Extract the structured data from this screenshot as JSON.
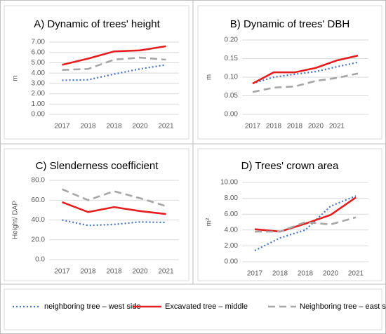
{
  "chart_data": [
    {
      "type": "line",
      "title": "A) Dynamic of trees' height",
      "ylabel": "m",
      "categories": [
        "2017",
        "2018",
        "2018",
        "2020",
        "2021"
      ],
      "ylim": [
        0,
        7
      ],
      "yticks": [
        {
          "value": 0,
          "label": "0.00"
        },
        {
          "value": 1,
          "label": "1.00"
        },
        {
          "value": 2,
          "label": "2.00"
        },
        {
          "value": 3,
          "label": "3.00"
        },
        {
          "value": 4,
          "label": "4.00"
        },
        {
          "value": 5,
          "label": "5.00"
        },
        {
          "value": 6,
          "label": "6.00"
        },
        {
          "value": 7,
          "label": "7.00"
        }
      ],
      "grid": true,
      "series": [
        {
          "name": "neighboring tree – west side",
          "color": "#4472c4",
          "values": [
            3.3,
            3.35,
            3.9,
            4.4,
            4.8
          ]
        },
        {
          "name": "Excavated tree – middle",
          "color": "#e41e1e",
          "values": [
            4.8,
            5.4,
            6.1,
            6.2,
            6.6
          ]
        },
        {
          "name": "Neighboring tree – east side",
          "color": "#a6a6a6",
          "values": [
            4.3,
            4.4,
            5.3,
            5.5,
            5.3
          ]
        }
      ]
    },
    {
      "type": "line",
      "title": "B) Dynamic of trees' DBH",
      "ylabel": "m",
      "categories": [
        "2017",
        "2018",
        "2018",
        "2020",
        "2021",
        null
      ],
      "ylim": [
        0,
        0.2
      ],
      "yticks": [
        {
          "value": 0,
          "label": "0.00"
        },
        {
          "value": 0.05,
          "label": "0.05"
        },
        {
          "value": 0.1,
          "label": "0.10"
        },
        {
          "value": 0.15,
          "label": "0.15"
        },
        {
          "value": 0.2,
          "label": "0.20"
        }
      ],
      "grid": true,
      "series": [
        {
          "color": "#4472c4",
          "values": [
            0.083,
            0.1,
            0.108,
            0.115,
            0.128,
            0.14
          ]
        },
        {
          "color": "#e41e1e",
          "values": [
            0.083,
            0.113,
            0.113,
            0.125,
            0.145,
            0.158
          ]
        },
        {
          "color": "#a6a6a6",
          "values": [
            0.06,
            0.072,
            0.075,
            0.09,
            0.098,
            0.11
          ]
        }
      ]
    },
    {
      "type": "line",
      "title": "C) Slenderness coefficient",
      "ylabel": "Height/ DAP",
      "categories": [
        "2017",
        "2018",
        "2018",
        "2020",
        "2021"
      ],
      "ylim": [
        0,
        80
      ],
      "yticks": [
        {
          "value": 0,
          "label": "0.0"
        },
        {
          "value": 20,
          "label": "20.0"
        },
        {
          "value": 40,
          "label": "40.0"
        },
        {
          "value": 60,
          "label": "60.0"
        },
        {
          "value": 80,
          "label": "80.0"
        }
      ],
      "grid": true,
      "series": [
        {
          "color": "#4472c4",
          "values": [
            40,
            34.5,
            35.5,
            38,
            37.5
          ]
        },
        {
          "color": "#e41e1e",
          "values": [
            58,
            48,
            53,
            49,
            46
          ]
        },
        {
          "color": "#a6a6a6",
          "values": [
            71,
            60,
            69,
            62,
            54
          ]
        }
      ]
    },
    {
      "type": "line",
      "title": "D) Trees' crown area",
      "ylabel": "m²",
      "categories": [
        "2017",
        "2018",
        "2018",
        "2020",
        "2021"
      ],
      "ylim": [
        0,
        10
      ],
      "yticks": [
        {
          "value": 0,
          "label": "0.00"
        },
        {
          "value": 2,
          "label": "2.00"
        },
        {
          "value": 4,
          "label": "4.00"
        },
        {
          "value": 6,
          "label": "6.00"
        },
        {
          "value": 8,
          "label": "8.00"
        },
        {
          "value": 10,
          "label": "10.00"
        }
      ],
      "grid": true,
      "series": [
        {
          "color": "#4472c4",
          "values": [
            1.4,
            3.0,
            4.0,
            7.0,
            8.3
          ]
        },
        {
          "color": "#e41e1e",
          "values": [
            4.1,
            3.8,
            4.8,
            5.9,
            8.1
          ]
        },
        {
          "color": "#a6a6a6",
          "values": [
            3.8,
            3.8,
            5.0,
            4.7,
            5.6
          ]
        }
      ]
    }
  ]
}
